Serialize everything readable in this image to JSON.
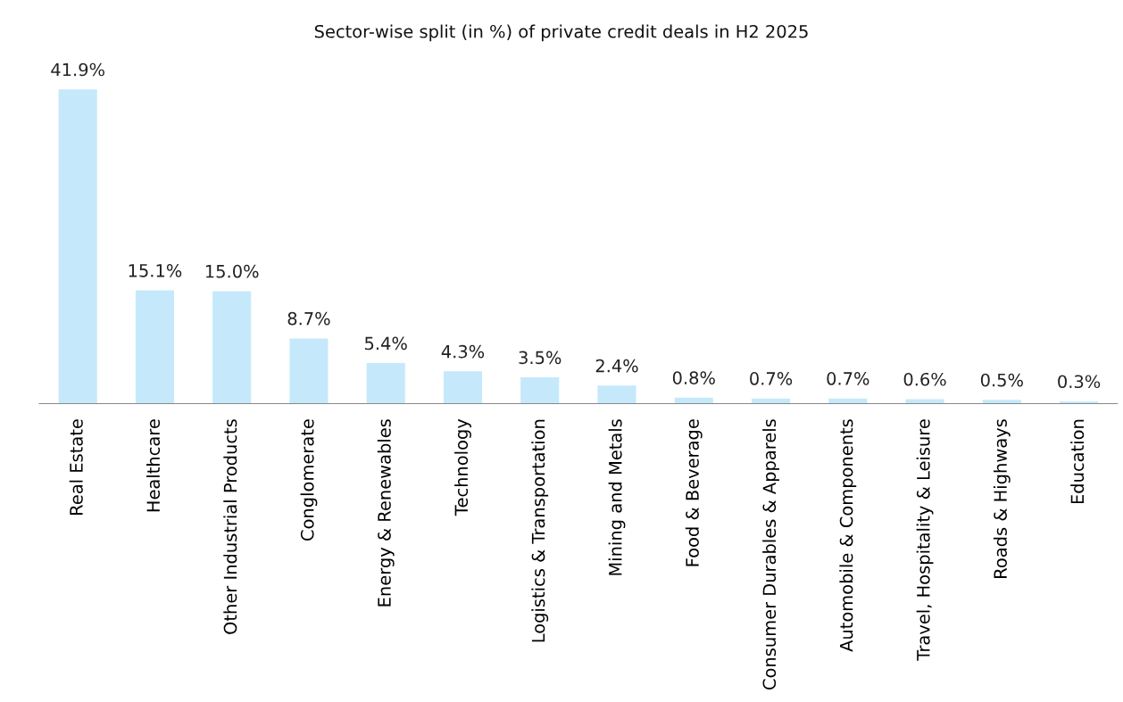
{
  "chart_data": {
    "type": "bar",
    "title": "Sector-wise split (in %) of private credit deals in H2 2025",
    "categories": [
      "Real Estate",
      "Healthcare",
      "Other Industrial Products",
      "Conglomerate",
      "Energy & Renewables",
      "Technology",
      "Logistics & Transportation",
      "Mining and Metals",
      "Food & Beverage",
      "Consumer Durables & Apparels",
      "Automobile & Components",
      "Travel, Hospitality & Leisure",
      "Roads & Highways",
      "Education"
    ],
    "values": [
      41.9,
      15.1,
      15.0,
      8.7,
      5.4,
      4.3,
      3.5,
      2.4,
      0.8,
      0.7,
      0.7,
      0.6,
      0.5,
      0.3
    ],
    "value_labels": [
      "41.9%",
      "15.1%",
      "15.0%",
      "8.7%",
      "5.4%",
      "4.3%",
      "3.5%",
      "2.4%",
      "0.8%",
      "0.7%",
      "0.7%",
      "0.6%",
      "0.5%",
      "0.3%"
    ],
    "color": "#c5e9fb",
    "tick_labels": "x",
    "grid": false,
    "legend": false
  }
}
